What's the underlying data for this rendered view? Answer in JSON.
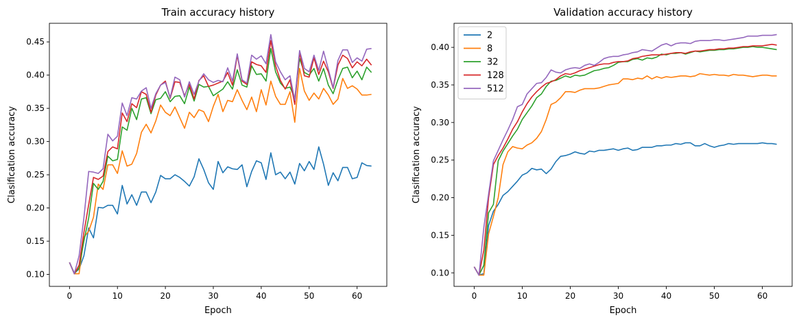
{
  "chart_data": [
    {
      "type": "line",
      "title": "Train accuracy history",
      "xlabel": "Epoch",
      "ylabel": "Clasification accuracy",
      "xlim": [
        -4.2,
        66.2
      ],
      "ylim": [
        0.082,
        0.478
      ],
      "xticks": [
        0,
        10,
        20,
        30,
        40,
        50,
        60
      ],
      "yticks": [
        0.1,
        0.15,
        0.2,
        0.25,
        0.3,
        0.35,
        0.4,
        0.45
      ],
      "ytick_labels": [
        "0.10",
        "0.15",
        "0.20",
        "0.25",
        "0.30",
        "0.35",
        "0.40",
        "0.45"
      ],
      "grid": false,
      "legend": null,
      "series": [
        {
          "name": "2",
          "color": "#1f77b4",
          "values": [
            0.118,
            0.102,
            0.108,
            0.128,
            0.17,
            0.155,
            0.201,
            0.2,
            0.204,
            0.204,
            0.191,
            0.234,
            0.206,
            0.22,
            0.204,
            0.224,
            0.224,
            0.208,
            0.224,
            0.249,
            0.244,
            0.244,
            0.25,
            0.246,
            0.24,
            0.233,
            0.247,
            0.274,
            0.258,
            0.238,
            0.228,
            0.27,
            0.253,
            0.262,
            0.259,
            0.258,
            0.265,
            0.232,
            0.255,
            0.271,
            0.268,
            0.243,
            0.283,
            0.25,
            0.254,
            0.244,
            0.254,
            0.236,
            0.267,
            0.256,
            0.27,
            0.258,
            0.292,
            0.266,
            0.234,
            0.253,
            0.241,
            0.261,
            0.261,
            0.244,
            0.246,
            0.268,
            0.264,
            0.263
          ]
        },
        {
          "name": "8",
          "color": "#ff7f0e",
          "values": [
            0.118,
            0.101,
            0.101,
            0.156,
            0.165,
            0.186,
            0.236,
            0.228,
            0.265,
            0.265,
            0.252,
            0.286,
            0.263,
            0.266,
            0.282,
            0.314,
            0.326,
            0.313,
            0.331,
            0.355,
            0.344,
            0.339,
            0.352,
            0.336,
            0.32,
            0.344,
            0.336,
            0.348,
            0.345,
            0.33,
            0.353,
            0.371,
            0.345,
            0.362,
            0.36,
            0.378,
            0.362,
            0.348,
            0.367,
            0.345,
            0.378,
            0.355,
            0.391,
            0.368,
            0.356,
            0.356,
            0.375,
            0.329,
            0.41,
            0.376,
            0.362,
            0.373,
            0.364,
            0.38,
            0.37,
            0.356,
            0.364,
            0.395,
            0.38,
            0.384,
            0.379,
            0.37,
            0.37,
            0.371
          ]
        },
        {
          "name": "32",
          "color": "#2ca02c",
          "values": [
            0.118,
            0.101,
            0.11,
            0.15,
            0.185,
            0.237,
            0.228,
            0.24,
            0.278,
            0.271,
            0.273,
            0.322,
            0.317,
            0.35,
            0.333,
            0.364,
            0.366,
            0.342,
            0.363,
            0.365,
            0.375,
            0.36,
            0.368,
            0.369,
            0.357,
            0.382,
            0.361,
            0.386,
            0.382,
            0.383,
            0.369,
            0.374,
            0.379,
            0.39,
            0.379,
            0.408,
            0.385,
            0.382,
            0.414,
            0.401,
            0.402,
            0.391,
            0.44,
            0.405,
            0.388,
            0.38,
            0.382,
            0.365,
            0.425,
            0.404,
            0.4,
            0.41,
            0.391,
            0.41,
            0.385,
            0.372,
            0.393,
            0.41,
            0.412,
            0.396,
            0.406,
            0.393,
            0.412,
            0.404
          ]
        },
        {
          "name": "128",
          "color": "#d62728",
          "values": [
            0.118,
            0.101,
            0.114,
            0.163,
            0.205,
            0.246,
            0.243,
            0.248,
            0.285,
            0.292,
            0.289,
            0.343,
            0.33,
            0.357,
            0.351,
            0.375,
            0.371,
            0.344,
            0.37,
            0.385,
            0.391,
            0.365,
            0.39,
            0.389,
            0.369,
            0.386,
            0.364,
            0.392,
            0.399,
            0.383,
            0.385,
            0.388,
            0.391,
            0.404,
            0.385,
            0.43,
            0.391,
            0.386,
            0.42,
            0.416,
            0.414,
            0.404,
            0.452,
            0.414,
            0.392,
            0.379,
            0.393,
            0.356,
            0.434,
            0.399,
            0.397,
            0.426,
            0.401,
            0.421,
            0.405,
            0.38,
            0.415,
            0.43,
            0.425,
            0.411,
            0.42,
            0.414,
            0.424,
            0.415
          ]
        },
        {
          "name": "512",
          "color": "#9467bd",
          "values": [
            0.118,
            0.101,
            0.128,
            0.185,
            0.255,
            0.254,
            0.252,
            0.259,
            0.311,
            0.301,
            0.308,
            0.358,
            0.339,
            0.366,
            0.364,
            0.376,
            0.381,
            0.35,
            0.372,
            0.385,
            0.389,
            0.366,
            0.397,
            0.393,
            0.367,
            0.39,
            0.371,
            0.391,
            0.402,
            0.393,
            0.389,
            0.392,
            0.39,
            0.411,
            0.391,
            0.432,
            0.393,
            0.388,
            0.43,
            0.424,
            0.429,
            0.417,
            0.461,
            0.42,
            0.405,
            0.393,
            0.399,
            0.362,
            0.437,
            0.41,
            0.405,
            0.43,
            0.407,
            0.436,
            0.409,
            0.381,
            0.422,
            0.438,
            0.438,
            0.419,
            0.426,
            0.421,
            0.439,
            0.44
          ]
        }
      ]
    },
    {
      "type": "line",
      "title": "Validation accuracy history",
      "xlabel": "Epoch",
      "ylabel": "Clasification accuracy",
      "xlim": [
        -4.2,
        66.2
      ],
      "ylim": [
        0.082,
        0.432
      ],
      "xticks": [
        0,
        10,
        20,
        30,
        40,
        50,
        60
      ],
      "yticks": [
        0.1,
        0.15,
        0.2,
        0.25,
        0.3,
        0.35,
        0.4
      ],
      "ytick_labels": [
        "0.10",
        "0.15",
        "0.20",
        "0.25",
        "0.30",
        "0.35",
        "0.40"
      ],
      "grid": false,
      "legend": "top-left",
      "series": [
        {
          "name": "2",
          "color": "#1f77b4",
          "values": [
            0.108,
            0.097,
            0.099,
            0.163,
            0.182,
            0.191,
            0.203,
            0.208,
            0.215,
            0.222,
            0.23,
            0.233,
            0.239,
            0.237,
            0.238,
            0.232,
            0.238,
            0.248,
            0.255,
            0.256,
            0.258,
            0.261,
            0.259,
            0.258,
            0.262,
            0.261,
            0.263,
            0.263,
            0.264,
            0.265,
            0.263,
            0.265,
            0.266,
            0.263,
            0.264,
            0.267,
            0.267,
            0.267,
            0.269,
            0.269,
            0.27,
            0.27,
            0.272,
            0.271,
            0.273,
            0.273,
            0.269,
            0.269,
            0.272,
            0.269,
            0.267,
            0.269,
            0.27,
            0.272,
            0.271,
            0.272,
            0.272,
            0.272,
            0.272,
            0.272,
            0.273,
            0.272,
            0.272,
            0.271
          ]
        },
        {
          "name": "8",
          "color": "#ff7f0e",
          "values": [
            0.108,
            0.097,
            0.097,
            0.152,
            0.175,
            0.2,
            0.244,
            0.261,
            0.268,
            0.266,
            0.265,
            0.27,
            0.273,
            0.279,
            0.288,
            0.304,
            0.324,
            0.327,
            0.333,
            0.341,
            0.341,
            0.34,
            0.343,
            0.345,
            0.345,
            0.345,
            0.346,
            0.348,
            0.35,
            0.351,
            0.352,
            0.358,
            0.358,
            0.357,
            0.359,
            0.358,
            0.362,
            0.358,
            0.361,
            0.359,
            0.361,
            0.36,
            0.361,
            0.362,
            0.362,
            0.361,
            0.362,
            0.365,
            0.364,
            0.363,
            0.364,
            0.363,
            0.363,
            0.362,
            0.364,
            0.363,
            0.363,
            0.362,
            0.361,
            0.362,
            0.363,
            0.363,
            0.362,
            0.362
          ]
        },
        {
          "name": "32",
          "color": "#2ca02c",
          "values": [
            0.108,
            0.097,
            0.11,
            0.18,
            0.191,
            0.249,
            0.262,
            0.272,
            0.282,
            0.291,
            0.304,
            0.313,
            0.322,
            0.333,
            0.338,
            0.348,
            0.355,
            0.356,
            0.359,
            0.362,
            0.36,
            0.363,
            0.362,
            0.363,
            0.366,
            0.369,
            0.37,
            0.372,
            0.373,
            0.376,
            0.38,
            0.381,
            0.381,
            0.384,
            0.385,
            0.383,
            0.386,
            0.385,
            0.387,
            0.391,
            0.39,
            0.392,
            0.392,
            0.393,
            0.391,
            0.393,
            0.395,
            0.394,
            0.395,
            0.396,
            0.396,
            0.397,
            0.397,
            0.398,
            0.398,
            0.399,
            0.4,
            0.4,
            0.401,
            0.4,
            0.4,
            0.399,
            0.398,
            0.397
          ]
        },
        {
          "name": "128",
          "color": "#d62728",
          "values": [
            0.108,
            0.097,
            0.13,
            0.2,
            0.244,
            0.256,
            0.266,
            0.278,
            0.291,
            0.301,
            0.314,
            0.325,
            0.334,
            0.341,
            0.347,
            0.352,
            0.354,
            0.357,
            0.362,
            0.365,
            0.364,
            0.366,
            0.369,
            0.371,
            0.373,
            0.375,
            0.377,
            0.378,
            0.378,
            0.38,
            0.381,
            0.381,
            0.382,
            0.385,
            0.386,
            0.388,
            0.389,
            0.39,
            0.39,
            0.39,
            0.391,
            0.392,
            0.393,
            0.393,
            0.392,
            0.394,
            0.395,
            0.395,
            0.396,
            0.397,
            0.397,
            0.398,
            0.398,
            0.399,
            0.399,
            0.4,
            0.401,
            0.401,
            0.402,
            0.402,
            0.402,
            0.403,
            0.404,
            0.403
          ]
        },
        {
          "name": "512",
          "color": "#9467bd",
          "values": [
            0.108,
            0.097,
            0.16,
            0.205,
            0.249,
            0.263,
            0.277,
            0.29,
            0.304,
            0.321,
            0.324,
            0.338,
            0.345,
            0.352,
            0.353,
            0.36,
            0.37,
            0.367,
            0.366,
            0.37,
            0.372,
            0.373,
            0.372,
            0.376,
            0.378,
            0.376,
            0.38,
            0.385,
            0.387,
            0.388,
            0.388,
            0.39,
            0.391,
            0.393,
            0.394,
            0.397,
            0.396,
            0.395,
            0.399,
            0.403,
            0.405,
            0.402,
            0.405,
            0.406,
            0.406,
            0.405,
            0.408,
            0.409,
            0.409,
            0.409,
            0.41,
            0.41,
            0.409,
            0.41,
            0.411,
            0.412,
            0.413,
            0.415,
            0.415,
            0.415,
            0.416,
            0.416,
            0.416,
            0.417
          ]
        }
      ]
    }
  ]
}
